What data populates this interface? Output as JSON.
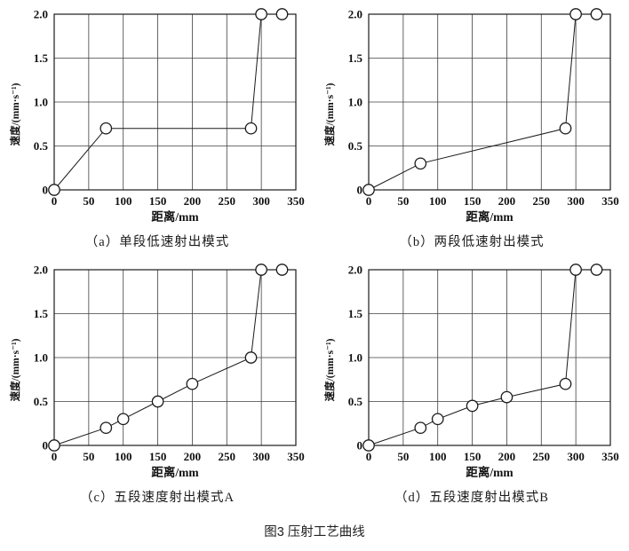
{
  "figure": {
    "caption": "图3 压射工艺曲线",
    "style": {
      "background": "#ffffff",
      "line_color": "#1a1a1a",
      "grid_color": "#3f3f3f",
      "frame_color": "#1a1a1a",
      "marker_fill": "#ffffff"
    }
  },
  "chart_data": [
    {
      "id": "a",
      "type": "line",
      "caption": "（a）单段低速射出模式",
      "xlabel": "距离/mm",
      "ylabel": "速度/(mm·s⁻¹)",
      "xlim": [
        0,
        350
      ],
      "ylim": [
        0,
        2
      ],
      "xticks": [
        0,
        50,
        100,
        150,
        200,
        250,
        300,
        350
      ],
      "xtick_labels": [
        "0",
        "50",
        "100",
        "150",
        "200",
        "250",
        "300",
        "350"
      ],
      "yticks": [
        0,
        0.5,
        1,
        1.5,
        2
      ],
      "ytick_labels": [
        "0",
        "0.5",
        "1.0",
        "1.5",
        "2.0"
      ],
      "grid": true,
      "marker": "open-circle",
      "points": [
        [
          0,
          0
        ],
        [
          75,
          0.7
        ],
        [
          285,
          0.7
        ],
        [
          300,
          2
        ],
        [
          330,
          2
        ]
      ]
    },
    {
      "id": "b",
      "type": "line",
      "caption": "（b）两段低速射出模式",
      "xlabel": "距离/mm",
      "ylabel": "速度/(mm·s⁻¹)",
      "xlim": [
        0,
        350
      ],
      "ylim": [
        0,
        2
      ],
      "xticks": [
        0,
        50,
        100,
        150,
        200,
        250,
        300,
        350
      ],
      "xtick_labels": [
        "0",
        "50",
        "100",
        "150",
        "200",
        "250",
        "300",
        "350"
      ],
      "yticks": [
        0,
        0.5,
        1,
        1.5,
        2
      ],
      "ytick_labels": [
        "0",
        "0.5",
        "1.0",
        "1.5",
        "2.0"
      ],
      "grid": true,
      "marker": "open-circle",
      "points": [
        [
          0,
          0
        ],
        [
          75,
          0.3
        ],
        [
          285,
          0.7
        ],
        [
          300,
          2
        ],
        [
          330,
          2
        ]
      ]
    },
    {
      "id": "c",
      "type": "line",
      "caption": "（c）五段速度射出模式A",
      "xlabel": "距离/mm",
      "ylabel": "速度/(mm·s⁻¹)",
      "xlim": [
        0,
        350
      ],
      "ylim": [
        0,
        2
      ],
      "xticks": [
        0,
        50,
        100,
        150,
        200,
        250,
        300,
        350
      ],
      "xtick_labels": [
        "0",
        "50",
        "100",
        "150",
        "200",
        "250",
        "300",
        "350"
      ],
      "yticks": [
        0,
        0.5,
        1,
        1.5,
        2
      ],
      "ytick_labels": [
        "0",
        "0.5",
        "1.0",
        "1.5",
        "2.0"
      ],
      "grid": true,
      "marker": "open-circle",
      "points": [
        [
          0,
          0
        ],
        [
          75,
          0.2
        ],
        [
          100,
          0.3
        ],
        [
          150,
          0.5
        ],
        [
          200,
          0.7
        ],
        [
          285,
          1.0
        ],
        [
          300,
          2
        ],
        [
          330,
          2
        ]
      ]
    },
    {
      "id": "d",
      "type": "line",
      "caption": "（d）五段速度射出模式B",
      "xlabel": "距离/mm",
      "ylabel": "速度/(mm·s⁻¹)",
      "xlim": [
        0,
        350
      ],
      "ylim": [
        0,
        2
      ],
      "xticks": [
        0,
        50,
        100,
        150,
        200,
        250,
        300,
        350
      ],
      "xtick_labels": [
        "0",
        "50",
        "100",
        "150",
        "200",
        "250",
        "300",
        "350"
      ],
      "yticks": [
        0,
        0.5,
        1,
        1.5,
        2
      ],
      "ytick_labels": [
        "0",
        "0.5",
        "1.0",
        "1.5",
        "2.0"
      ],
      "grid": true,
      "marker": "open-circle",
      "points": [
        [
          0,
          0
        ],
        [
          75,
          0.2
        ],
        [
          100,
          0.3
        ],
        [
          150,
          0.45
        ],
        [
          200,
          0.55
        ],
        [
          285,
          0.7
        ],
        [
          300,
          2
        ],
        [
          330,
          2
        ]
      ]
    }
  ]
}
